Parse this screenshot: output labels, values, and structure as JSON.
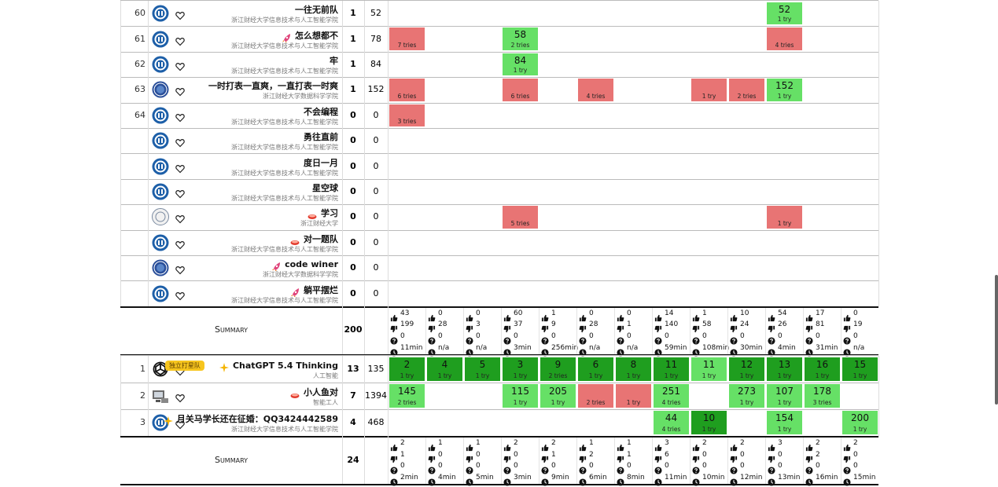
{
  "sections": [
    {
      "teams": [
        {
          "rank": "60",
          "logo": "zufe",
          "name": "一往无前队",
          "school": "浙江财经大学信息技术与人工智能学院",
          "solved": 1,
          "penalty": 52,
          "cells": [
            null,
            null,
            null,
            null,
            null,
            null,
            null,
            null,
            null,
            null,
            {
              "time": 52,
              "tries": "1 try",
              "status": "solved"
            },
            null,
            null
          ]
        },
        {
          "rank": "61",
          "logo": "zufe",
          "icon": "rocket",
          "name": "怎么想都不",
          "school": "浙江财经大学信息技术与人工智能学院",
          "solved": 1,
          "penalty": 78,
          "cells": [
            {
              "tries": "7 tries",
              "status": "fail"
            },
            null,
            null,
            {
              "time": 58,
              "tries": "2 tries",
              "status": "solved"
            },
            null,
            null,
            null,
            null,
            null,
            null,
            {
              "tries": "4 tries",
              "status": "fail"
            },
            null,
            null
          ]
        },
        {
          "rank": "62",
          "logo": "zufe",
          "name": "牢",
          "school": "浙江财经大学信息技术与人工智能学院",
          "solved": 1,
          "penalty": 84,
          "cells": [
            null,
            null,
            null,
            {
              "time": 84,
              "tries": "1 try",
              "status": "solved"
            },
            null,
            null,
            null,
            null,
            null,
            null,
            null,
            null,
            null
          ]
        },
        {
          "rank": "63",
          "logo": "ds",
          "name": "一时打表一直爽，一直打表一时爽",
          "school": "浙江财经大学数据科学学院",
          "solved": 1,
          "penalty": 152,
          "cells": [
            {
              "tries": "6 tries",
              "status": "fail"
            },
            null,
            null,
            {
              "tries": "6 tries",
              "status": "fail"
            },
            null,
            {
              "tries": "4 tries",
              "status": "fail"
            },
            null,
            null,
            {
              "tries": "1 try",
              "status": "fail"
            },
            {
              "tries": "2 tries",
              "status": "fail"
            },
            {
              "time": 152,
              "tries": "1 try",
              "status": "solved"
            },
            null,
            null
          ]
        },
        {
          "rank": "64",
          "logo": "zufe",
          "name": "不会编程",
          "school": "浙江财经大学信息技术与人工智能学院",
          "solved": 0,
          "penalty": 0,
          "cells": [
            {
              "tries": "3 tries",
              "status": "fail"
            },
            null,
            null,
            null,
            null,
            null,
            null,
            null,
            null,
            null,
            null,
            null,
            null
          ]
        },
        {
          "logo": "zufe",
          "name": "勇往直前",
          "school": "浙江财经大学信息技术与人工智能学院",
          "solved": 0,
          "penalty": 0,
          "cells": []
        },
        {
          "logo": "zufe",
          "name": "度日一月",
          "school": "浙江财经大学信息技术与人工智能学院",
          "solved": 0,
          "penalty": 0,
          "cells": []
        },
        {
          "logo": "zufe",
          "name": "星空球",
          "school": "浙江财经大学信息技术与人工智能学院",
          "solved": 0,
          "penalty": 0,
          "cells": []
        },
        {
          "logo": "gray",
          "icon": "sushi",
          "name": "学习",
          "school": "浙江财经大学",
          "solved": 0,
          "penalty": 0,
          "cells": [
            null,
            null,
            null,
            {
              "tries": "5 tries",
              "status": "fail"
            },
            null,
            null,
            null,
            null,
            null,
            null,
            {
              "tries": "1 try",
              "status": "fail"
            },
            null,
            null
          ]
        },
        {
          "logo": "zufe",
          "icon": "sushi",
          "name": "对一题队",
          "school": "浙江财经大学信息技术与人工智能学院",
          "solved": 0,
          "penalty": 0,
          "cells": []
        },
        {
          "logo": "ds",
          "icon": "rocket",
          "name": "code winer",
          "school": "浙江财经大学数据科学学院",
          "solved": 0,
          "penalty": 0,
          "cells": []
        },
        {
          "logo": "zufe",
          "icon": "rocket",
          "name": "躺平摆烂",
          "school": "浙江财经大学信息技术与人工智能学院",
          "solved": 0,
          "penalty": 0,
          "cells": []
        }
      ],
      "summary": {
        "label": "Summary",
        "total": 200,
        "stats": [
          [
            43,
            199,
            0,
            "11min"
          ],
          [
            0,
            28,
            0,
            "n/a"
          ],
          [
            0,
            3,
            0,
            "n/a"
          ],
          [
            60,
            37,
            0,
            "3min"
          ],
          [
            1,
            9,
            0,
            "256min"
          ],
          [
            0,
            28,
            0,
            "n/a"
          ],
          [
            0,
            1,
            0,
            "n/a"
          ],
          [
            14,
            140,
            0,
            "59min"
          ],
          [
            1,
            58,
            0,
            "108min"
          ],
          [
            10,
            24,
            0,
            "30min"
          ],
          [
            54,
            26,
            0,
            "4min"
          ],
          [
            17,
            81,
            0,
            "31min"
          ],
          [
            0,
            19,
            0,
            "n/a"
          ]
        ]
      }
    },
    {
      "teams": [
        {
          "rank": "1",
          "logo": "openai",
          "tag": "独立打星队",
          "icon": "sparkle",
          "name": "ChatGPT 5.4 Thinking",
          "school": "人工智能",
          "solved": 13,
          "penalty": 135,
          "cells": [
            {
              "time": 2,
              "tries": "1 try",
              "status": "first"
            },
            {
              "time": 4,
              "tries": "1 try",
              "status": "first"
            },
            {
              "time": 5,
              "tries": "1 try",
              "status": "first"
            },
            {
              "time": 3,
              "tries": "1 try",
              "status": "first"
            },
            {
              "time": 9,
              "tries": "2 tries",
              "status": "first"
            },
            {
              "time": 6,
              "tries": "1 try",
              "status": "first"
            },
            {
              "time": 8,
              "tries": "1 try",
              "status": "first"
            },
            {
              "time": 11,
              "tries": "1 try",
              "status": "first"
            },
            {
              "time": 11,
              "tries": "1 try",
              "status": "solved"
            },
            {
              "time": 12,
              "tries": "1 try",
              "status": "first"
            },
            {
              "time": 13,
              "tries": "1 try",
              "status": "first"
            },
            {
              "time": 16,
              "tries": "1 try",
              "status": "first"
            },
            {
              "time": 15,
              "tries": "1 try",
              "status": "first"
            }
          ]
        },
        {
          "rank": "2",
          "logo": "computer",
          "icon": "sushi",
          "name": "小人鱼对",
          "school": "智能工人",
          "solved": 7,
          "penalty": 1394,
          "cells": [
            {
              "time": 145,
              "tries": "2 tries",
              "status": "solved"
            },
            null,
            null,
            {
              "time": 115,
              "tries": "1 try",
              "status": "solved"
            },
            {
              "time": 205,
              "tries": "1 try",
              "status": "solved"
            },
            {
              "tries": "2 tries",
              "status": "fail"
            },
            {
              "tries": "1 try",
              "status": "fail"
            },
            {
              "time": 251,
              "tries": "4 tries",
              "status": "solved"
            },
            null,
            {
              "time": 273,
              "tries": "1 try",
              "status": "solved"
            },
            {
              "time": 107,
              "tries": "1 try",
              "status": "solved"
            },
            {
              "time": 178,
              "tries": "3 tries",
              "status": "solved"
            },
            null
          ]
        },
        {
          "rank": "3",
          "logo": "zufe",
          "icon": "sparkle",
          "name": "月关马学长还在征婚：QQ3424442589",
          "school": "浙江财经大学信息技术与人工智能学院",
          "solved": 4,
          "penalty": 468,
          "cells": [
            null,
            null,
            null,
            null,
            null,
            null,
            null,
            {
              "time": 44,
              "tries": "4 tries",
              "status": "solved"
            },
            {
              "time": 10,
              "tries": "1 try",
              "status": "first"
            },
            null,
            {
              "time": 154,
              "tries": "1 try",
              "status": "solved"
            },
            null,
            {
              "time": 200,
              "tries": "1 try",
              "status": "solved"
            }
          ]
        }
      ],
      "summary": {
        "label": "Summary",
        "total": 24,
        "stats": [
          [
            2,
            1,
            0,
            "2min"
          ],
          [
            1,
            0,
            0,
            "4min"
          ],
          [
            1,
            0,
            0,
            "5min"
          ],
          [
            2,
            0,
            0,
            "3min"
          ],
          [
            2,
            1,
            0,
            "9min"
          ],
          [
            1,
            2,
            0,
            "6min"
          ],
          [
            1,
            1,
            0,
            "8min"
          ],
          [
            3,
            6,
            0,
            "11min"
          ],
          [
            2,
            0,
            0,
            "10min"
          ],
          [
            2,
            0,
            0,
            "12min"
          ],
          [
            3,
            0,
            0,
            "13min"
          ],
          [
            2,
            2,
            0,
            "16min"
          ],
          [
            2,
            0,
            0,
            "15min"
          ]
        ]
      }
    }
  ]
}
